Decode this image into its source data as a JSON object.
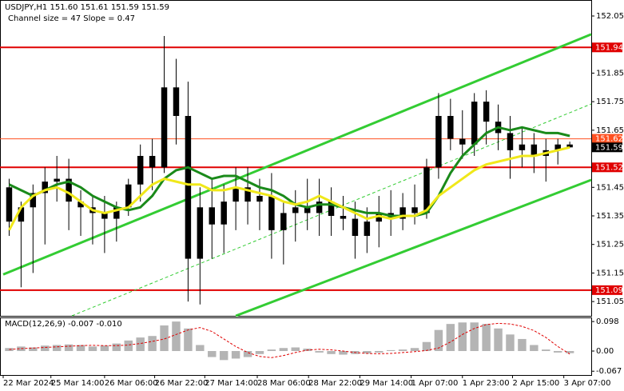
{
  "chart_data": {
    "type": "candlestick",
    "title": "USDJPY,H1  151.60 151.61 151.59 151.59",
    "subtitle": "Channel size = 47 Slope = 0.47",
    "candle_color": "#000000",
    "xlim": [
      0,
      49.3
    ],
    "xticks": [
      {
        "value": 0,
        "label": "22 Mar 2024"
      },
      {
        "value": 4,
        "label": "25 Mar 14:00"
      },
      {
        "value": 8.5,
        "label": "26 Mar 06:00"
      },
      {
        "value": 12.7,
        "label": "26 Mar 22:00"
      },
      {
        "value": 16.9,
        "label": "27 Mar 14:00"
      },
      {
        "value": 21.3,
        "label": "28 Mar 06:00"
      },
      {
        "value": 25.6,
        "label": "28 Mar 22:00"
      },
      {
        "value": 29.9,
        "label": "29 Mar 14:00"
      },
      {
        "value": 34.2,
        "label": "1 Apr 07:00"
      },
      {
        "value": 38.5,
        "label": "1 Apr 23:00"
      },
      {
        "value": 42.7,
        "label": "2 Apr 15:00"
      },
      {
        "value": 47,
        "label": "3 Apr 07:00"
      }
    ],
    "ylim": [
      151.0,
      152.106
    ],
    "yticks": [
      152.05,
      151.85,
      151.75,
      151.65,
      151.45,
      151.35,
      151.25,
      151.15,
      151.05
    ],
    "ohlc": [
      [
        151.45,
        151.48,
        151.28,
        151.33
      ],
      [
        151.33,
        151.4,
        151.1,
        151.38
      ],
      [
        151.38,
        151.46,
        151.15,
        151.43
      ],
      [
        151.43,
        151.52,
        151.25,
        151.47
      ],
      [
        151.47,
        151.56,
        151.4,
        151.48
      ],
      [
        151.48,
        151.55,
        151.3,
        151.4
      ],
      [
        151.4,
        151.44,
        151.28,
        151.38
      ],
      [
        151.38,
        151.42,
        151.25,
        151.36
      ],
      [
        151.36,
        151.42,
        151.22,
        151.34
      ],
      [
        151.34,
        151.4,
        151.26,
        151.38
      ],
      [
        151.38,
        151.48,
        151.35,
        151.46
      ],
      [
        151.46,
        151.6,
        151.4,
        151.56
      ],
      [
        151.56,
        151.62,
        151.44,
        151.52
      ],
      [
        151.52,
        151.98,
        151.5,
        151.8
      ],
      [
        151.8,
        151.9,
        151.6,
        151.7
      ],
      [
        151.7,
        151.82,
        151.05,
        151.2
      ],
      [
        151.2,
        151.45,
        151.04,
        151.38
      ],
      [
        151.38,
        151.48,
        151.2,
        151.32
      ],
      [
        151.32,
        151.46,
        151.22,
        151.4
      ],
      [
        151.4,
        151.52,
        151.3,
        151.45
      ],
      [
        151.45,
        151.52,
        151.32,
        151.4
      ],
      [
        151.4,
        151.48,
        151.3,
        151.42
      ],
      [
        151.42,
        151.5,
        151.2,
        151.3
      ],
      [
        151.3,
        151.4,
        151.18,
        151.36
      ],
      [
        151.36,
        151.44,
        151.26,
        151.38
      ],
      [
        151.38,
        151.48,
        151.3,
        151.36
      ],
      [
        151.36,
        151.48,
        151.28,
        151.4
      ],
      [
        151.4,
        151.45,
        151.28,
        151.35
      ],
      [
        151.35,
        151.42,
        151.3,
        151.34
      ],
      [
        151.34,
        151.4,
        151.2,
        151.28
      ],
      [
        151.28,
        151.38,
        151.22,
        151.33
      ],
      [
        151.33,
        151.42,
        151.24,
        151.36
      ],
      [
        151.36,
        151.44,
        151.28,
        151.34
      ],
      [
        151.34,
        151.43,
        151.3,
        151.38
      ],
      [
        151.38,
        151.46,
        151.32,
        151.36
      ],
      [
        151.36,
        151.55,
        151.34,
        151.52
      ],
      [
        151.52,
        151.78,
        151.48,
        151.7
      ],
      [
        151.7,
        151.76,
        151.58,
        151.62
      ],
      [
        151.62,
        151.72,
        151.55,
        151.6
      ],
      [
        151.6,
        151.78,
        151.56,
        151.75
      ],
      [
        151.75,
        151.79,
        151.6,
        151.68
      ],
      [
        151.68,
        151.74,
        151.58,
        151.64
      ],
      [
        151.64,
        151.7,
        151.48,
        151.58
      ],
      [
        151.58,
        151.66,
        151.52,
        151.6
      ],
      [
        151.6,
        151.64,
        151.5,
        151.56
      ],
      [
        151.56,
        151.62,
        151.47,
        151.58
      ],
      [
        151.58,
        151.62,
        151.53,
        151.6
      ],
      [
        151.6,
        151.61,
        151.59,
        151.59
      ]
    ],
    "lines": [
      {
        "color": "#1a8a1a",
        "values": [
          151.46,
          151.44,
          151.42,
          151.44,
          151.46,
          151.47,
          151.45,
          151.42,
          151.4,
          151.38,
          151.37,
          151.38,
          151.42,
          151.48,
          151.51,
          151.52,
          151.5,
          151.48,
          151.49,
          151.49,
          151.47,
          151.45,
          151.44,
          151.42,
          151.39,
          151.38,
          151.39,
          151.39,
          151.38,
          151.37,
          151.36,
          151.36,
          151.35,
          151.35,
          151.35,
          151.36,
          151.42,
          151.5,
          151.56,
          151.6,
          151.64,
          151.66,
          151.65,
          151.66,
          151.65,
          151.64,
          151.64,
          151.63
        ]
      },
      {
        "color": "#f0e81a",
        "values": [
          151.3,
          151.38,
          151.42,
          151.44,
          151.45,
          151.43,
          151.4,
          151.37,
          151.36,
          151.37,
          151.38,
          151.42,
          151.46,
          151.48,
          151.47,
          151.46,
          151.46,
          151.44,
          151.44,
          151.45,
          151.44,
          151.43,
          151.42,
          151.4,
          151.39,
          151.4,
          151.42,
          151.4,
          151.38,
          151.36,
          151.34,
          151.35,
          151.34,
          151.35,
          151.35,
          151.37,
          151.42,
          151.45,
          151.48,
          151.51,
          151.53,
          151.54,
          151.55,
          151.56,
          151.56,
          151.57,
          151.58,
          151.59
        ]
      }
    ],
    "channel": [
      {
        "x": [
          0,
          49.3
        ],
        "y": [
          151.145,
          151.986
        ],
        "color": "#33cc33",
        "dash": false
      },
      {
        "x": [
          19.5,
          49.3
        ],
        "y": [
          151.0,
          151.476
        ],
        "color": "#33cc33",
        "dash": false
      },
      {
        "x": [
          5.76,
          49.3
        ],
        "y": [
          151.0,
          151.742
        ],
        "color": "#33cc33",
        "dash": true
      }
    ],
    "levels": [
      {
        "value": 151.94,
        "color": "#e00000",
        "style": "thick"
      },
      {
        "value": 151.62,
        "color": "#ff5020",
        "style": "thin"
      },
      {
        "value": 151.59,
        "color": "#000000",
        "style": "none"
      },
      {
        "value": 151.52,
        "color": "#e00000",
        "style": "thick"
      },
      {
        "value": 151.09,
        "color": "#e00000",
        "style": "thick"
      }
    ],
    "macd": {
      "label": "MACD(12,26,9) -0.007 -0.010",
      "y2lim": [
        -0.077,
        0.109
      ],
      "y2ticks": [
        0.098,
        {
          "value": 0,
          "label": "0.00"
        },
        -0.067
      ],
      "histogram_color": "#b4b4b4",
      "signal_color": "#e00000",
      "histogram": [
        0.01,
        0.015,
        0.012,
        0.018,
        0.02,
        0.022,
        0.02,
        0.015,
        0.018,
        0.025,
        0.035,
        0.045,
        0.05,
        0.085,
        0.098,
        0.075,
        0.02,
        -0.02,
        -0.03,
        -0.025,
        -0.02,
        -0.01,
        0.005,
        0.01,
        0.012,
        0.008,
        -0.005,
        -0.01,
        -0.012,
        -0.01,
        -0.008,
        -0.005,
        0.003,
        0.005,
        0.01,
        0.03,
        0.07,
        0.09,
        0.095,
        0.095,
        0.09,
        0.075,
        0.055,
        0.04,
        0.02,
        0.005,
        -0.005,
        -0.007
      ],
      "signal": [
        0.005,
        0.008,
        0.01,
        0.012,
        0.014,
        0.016,
        0.018,
        0.019,
        0.018,
        0.018,
        0.02,
        0.025,
        0.032,
        0.04,
        0.055,
        0.07,
        0.078,
        0.065,
        0.04,
        0.015,
        -0.005,
        -0.018,
        -0.022,
        -0.015,
        -0.005,
        0.003,
        0.006,
        0.004,
        0.0,
        -0.005,
        -0.008,
        -0.009,
        -0.008,
        -0.005,
        -0.002,
        0.002,
        0.01,
        0.03,
        0.055,
        0.075,
        0.088,
        0.092,
        0.09,
        0.082,
        0.068,
        0.045,
        0.015,
        -0.01
      ]
    }
  }
}
